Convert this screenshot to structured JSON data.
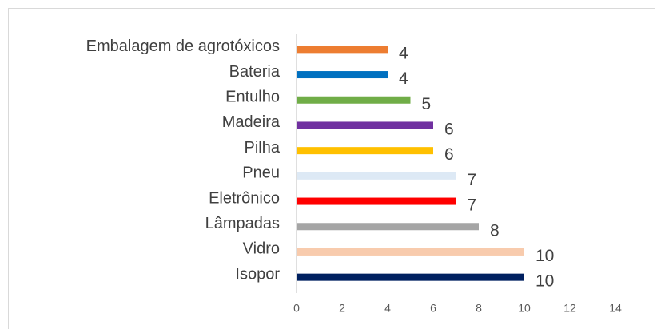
{
  "chart_data": {
    "type": "bar",
    "orientation": "horizontal",
    "categories": [
      "Embalagem de agrotóxicos",
      "Bateria",
      "Entulho",
      "Madeira",
      "Pilha",
      "Pneu",
      "Eletrônico",
      "Lâmpadas",
      "Vidro",
      "Isopor"
    ],
    "values": [
      4,
      4,
      5,
      6,
      6,
      7,
      7,
      8,
      10,
      10
    ],
    "colors": [
      "#ed7d31",
      "#0070c0",
      "#70ad47",
      "#7030a0",
      "#ffc000",
      "#dde9f5",
      "#ff0000",
      "#a5a5a5",
      "#f8cbad",
      "#002060"
    ],
    "xlim": [
      0,
      14
    ],
    "xticks": [
      0,
      2,
      4,
      6,
      8,
      10,
      12,
      14
    ],
    "grid": false
  }
}
